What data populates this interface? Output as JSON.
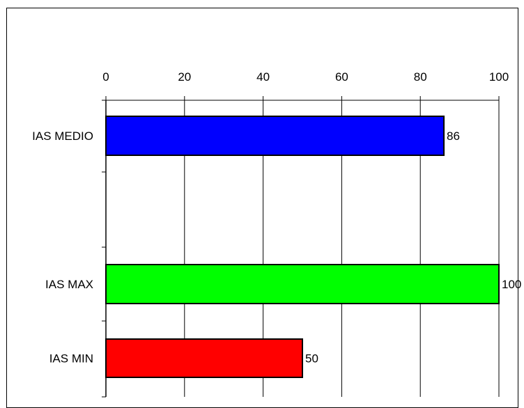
{
  "chart_data": {
    "type": "bar",
    "orientation": "horizontal",
    "title": "",
    "xlabel": "",
    "ylabel": "",
    "xlim": [
      0,
      100
    ],
    "x_ticks": [
      0,
      20,
      40,
      60,
      80,
      100
    ],
    "x_tick_labels": [
      "0",
      "20",
      "40",
      "60",
      "80",
      "100"
    ],
    "x_axis_position": "top",
    "grid": "vertical",
    "legend": "none",
    "bars": [
      {
        "label": "IAS MEDIO",
        "value": 86,
        "value_label": "86",
        "color": "#0000ff"
      },
      {
        "label": "IAS MAX",
        "value": 100,
        "value_label": "100",
        "color": "#00ff00"
      },
      {
        "label": "IAS MIN",
        "value": 50,
        "value_label": "50",
        "color": "#ff0000"
      }
    ]
  }
}
